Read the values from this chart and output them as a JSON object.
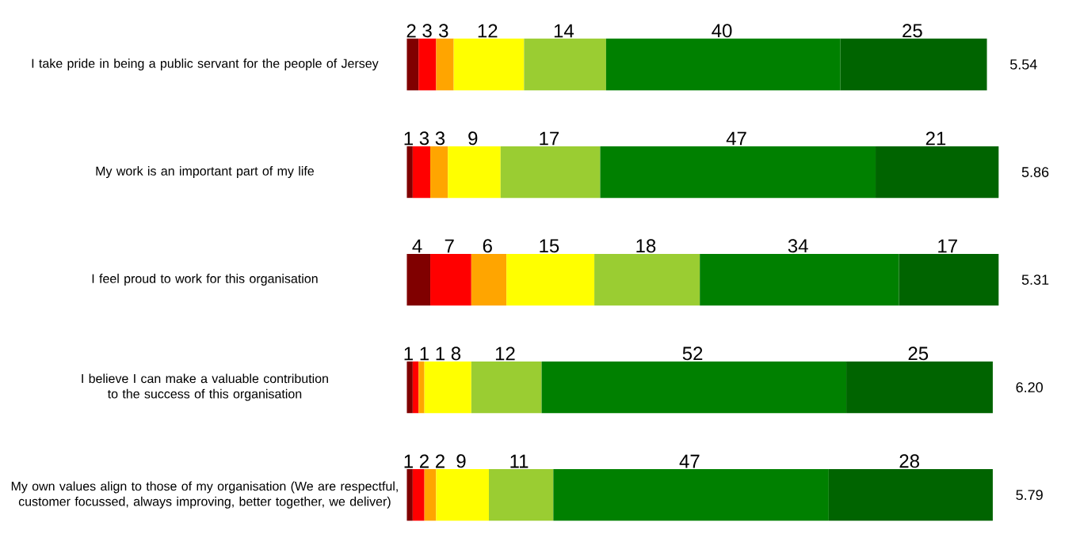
{
  "chart_data": {
    "type": "bar",
    "orientation": "horizontal",
    "stacked": true,
    "data_labels": true,
    "categories": [
      "I take pride in being a public servant for the people of Jersey",
      "My work is an important part of my life",
      "I feel proud to work for this organisation",
      "I believe I can make a valuable contribution to the success of this organisation",
      "My own values align to those of my organisation (We are respectful, customer focussed, always improving, better together, we deliver)"
    ],
    "series": [
      {
        "color": "#800000",
        "values": [
          2,
          1,
          4,
          1,
          1
        ]
      },
      {
        "color": "#ff0000",
        "values": [
          3,
          3,
          7,
          1,
          2
        ]
      },
      {
        "color": "#ffa500",
        "values": [
          3,
          3,
          6,
          1,
          2
        ]
      },
      {
        "color": "#ffff00",
        "values": [
          12,
          9,
          15,
          8,
          9
        ]
      },
      {
        "color": "#9acd32",
        "values": [
          14,
          17,
          18,
          12,
          11
        ]
      },
      {
        "color": "#008000",
        "values": [
          40,
          47,
          34,
          52,
          47
        ]
      },
      {
        "color": "#006400",
        "values": [
          25,
          21,
          17,
          25,
          28
        ]
      }
    ],
    "annotations": [
      "5.54",
      "5.86",
      "5.31",
      "6.20",
      "5.79"
    ]
  }
}
